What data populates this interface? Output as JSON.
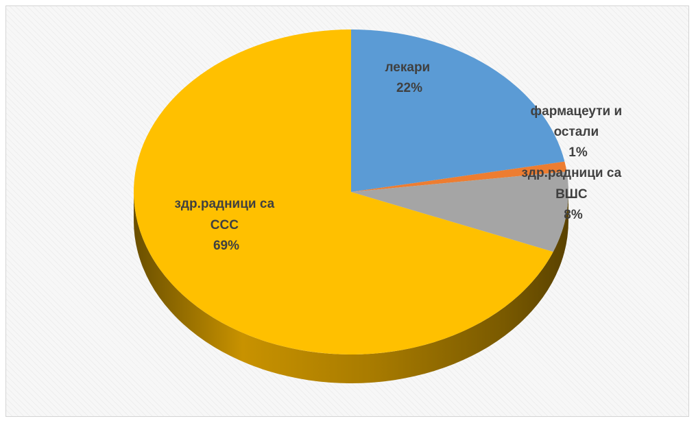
{
  "chart_data": {
    "type": "pie",
    "title": "",
    "categories": [
      "лекари",
      "фармацеути и остали",
      "здр.радници са ВШС",
      "здр.радници са ССС"
    ],
    "values": [
      22,
      1,
      8,
      69
    ],
    "series": [
      {
        "slices": [
          {
            "label_lines": [
              "лекари"
            ],
            "pct_text": "22%",
            "value": 22,
            "color": "#5b9bd5"
          },
          {
            "label_lines": [
              "фармацеути и",
              "остали"
            ],
            "pct_text": "1%",
            "value": 1,
            "color": "#ed7d31"
          },
          {
            "label_lines": [
              "здр.радници са",
              "ВШС"
            ],
            "pct_text": "8%",
            "value": 8,
            "color": "#a5a5a5"
          },
          {
            "label_lines": [
              "здр.радници са",
              "ССС"
            ],
            "pct_text": "69%",
            "value": 69,
            "color": "#ffc000"
          }
        ]
      }
    ],
    "style": "3d",
    "legend": "none",
    "data_labels": "category-and-percent"
  }
}
